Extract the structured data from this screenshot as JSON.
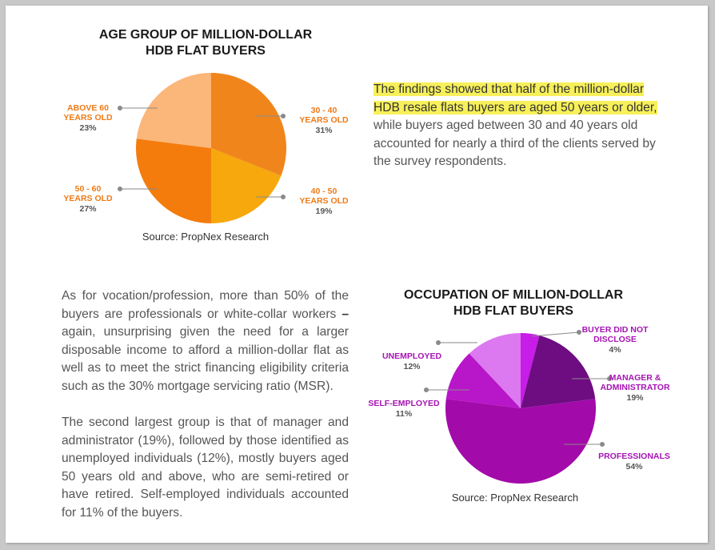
{
  "chart_data": [
    {
      "type": "pie",
      "title": "AGE GROUP OF MILLION-DOLLAR HDB FLAT BUYERS",
      "title_lines": [
        "AGE GROUP OF MILLION-DOLLAR",
        "HDB FLAT BUYERS"
      ],
      "slices": [
        {
          "label_lines": [
            "30 - 40",
            "YEARS OLD"
          ],
          "label": "30 - 40 YEARS OLD",
          "value": 31,
          "pct": "31%",
          "color": "#f0851c"
        },
        {
          "label_lines": [
            "40 - 50",
            "YEARS OLD"
          ],
          "label": "40 - 50 YEARS OLD",
          "value": 19,
          "pct": "19%",
          "color": "#f6a80c"
        },
        {
          "label_lines": [
            "50 - 60",
            "YEARS OLD"
          ],
          "label": "50 - 60 YEARS OLD",
          "value": 27,
          "pct": "27%",
          "color": "#f47c0d"
        },
        {
          "label_lines": [
            "ABOVE 60",
            "YEARS OLD"
          ],
          "label": "ABOVE 60 YEARS OLD",
          "value": 23,
          "pct": "23%",
          "color": "#fbb679"
        }
      ],
      "label_color": "#ef7a16",
      "source": "Source: PropNex Research"
    },
    {
      "type": "pie",
      "title": "OCCUPATION OF MILLION-DOLLAR HDB FLAT BUYERS",
      "title_lines": [
        "OCCUPATION OF MILLION-DOLLAR",
        "HDB FLAT BUYERS"
      ],
      "slices": [
        {
          "label_lines": [
            "BUYER DID NOT",
            "DISCLOSE"
          ],
          "label": "BUYER DID NOT DISCLOSE",
          "value": 4,
          "pct": "4%",
          "color": "#c81ce8"
        },
        {
          "label_lines": [
            "MANAGER &",
            "ADMINISTRATOR"
          ],
          "label": "MANAGER & ADMINISTRATOR",
          "value": 19,
          "pct": "19%",
          "color": "#6e0c82"
        },
        {
          "label_lines": [
            "PROFESSIONALS"
          ],
          "label": "PROFESSIONALS",
          "value": 54,
          "pct": "54%",
          "color": "#a20aa9"
        },
        {
          "label_lines": [
            "SELF-EMPLOYED"
          ],
          "label": "SELF-EMPLOYED",
          "value": 11,
          "pct": "11%",
          "color": "#b816c9"
        },
        {
          "label_lines": [
            "UNEMPLOYED"
          ],
          "label": "UNEMPLOYED",
          "value": 12,
          "pct": "12%",
          "color": "#dc78f0"
        }
      ],
      "label_color": "#a613b4",
      "source": "Source: PropNex Research"
    }
  ],
  "text": {
    "para1_highlight": "The findings showed that half of the million-dollar HDB resale flats buyers are aged 50 years or older,",
    "para1_rest": " while buyers aged between 30 and 40 years old accounted for nearly a third of the clients served by the survey respondents.",
    "para2_main": "As for vocation/profession, more than 50% of the buyers are professionals or white-collar workers ",
    "para2_dash": "–",
    "para2_rest": " again, unsurprising given the need for a larger disposable income to afford a million-dollar flat as well as to meet the strict financing eligibility criteria such as the 30% mortgage servicing ratio (MSR).",
    "para3": "The second largest group is that of manager and administrator (19%), followed by those identified as unemployed individuals (12%), mostly buyers aged 50 years old and above, who are semi-retired or have retired. Self-employed individuals accounted for 11% of the buyers."
  }
}
